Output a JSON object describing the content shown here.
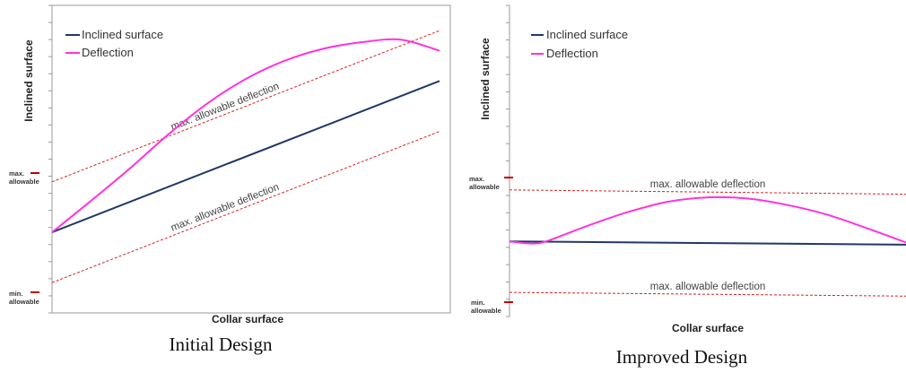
{
  "colors": {
    "inclined": "#1f3868",
    "deflection": "#ff33dd",
    "limit": "#d82222",
    "tick": "#c00000",
    "axis": "#9a9a9a"
  },
  "captions": [
    "Initial Design",
    "Improved Design"
  ],
  "chart_data": [
    {
      "type": "line",
      "title": "",
      "xlabel": "Collar surface",
      "ylabel": "Inclined surface",
      "xlim": [
        0,
        1
      ],
      "ylim": [
        -1.6,
        4.5
      ],
      "grid": false,
      "legend_position": "top-left",
      "tick_labels": [
        {
          "text": "max. allowable",
          "y": 1.0
        },
        {
          "text": "min. allowable",
          "y": -1.0
        }
      ],
      "series": [
        {
          "name": "Inclined surface",
          "color": "#1f3868",
          "x": [
            0,
            1
          ],
          "y": [
            0,
            3.0
          ]
        },
        {
          "name": "Deflection",
          "color": "#ff33dd",
          "x": [
            0,
            0.1,
            0.2,
            0.3,
            0.4,
            0.5,
            0.6,
            0.7,
            0.8,
            0.9,
            1.0
          ],
          "y": [
            0,
            0.62,
            1.26,
            1.94,
            2.55,
            3.04,
            3.4,
            3.64,
            3.77,
            3.82,
            3.6
          ]
        }
      ],
      "limit_lines": [
        {
          "label": "max. allowable deflection",
          "y0": 1.0,
          "y1": 4.0
        },
        {
          "label": "max. allowable deflection",
          "y0": -1.0,
          "y1": 2.0
        }
      ]
    },
    {
      "type": "line",
      "title": "",
      "xlabel": "Collar surface",
      "ylabel": "Inclined surface",
      "xlim": [
        0,
        1
      ],
      "ylim": [
        -1.4,
        4.4
      ],
      "grid": false,
      "legend_position": "top-left",
      "tick_labels": [
        {
          "text": "max. allowable",
          "y": 1.0
        },
        {
          "text": "min. allowable",
          "y": -1.0
        }
      ],
      "series": [
        {
          "name": "Inclined surface",
          "color": "#1f3868",
          "x": [
            0,
            1
          ],
          "y": [
            0,
            -0.06
          ]
        },
        {
          "name": "Deflection",
          "color": "#ff33dd",
          "x": [
            0,
            0.06,
            0.1,
            0.2,
            0.3,
            0.4,
            0.5,
            0.6,
            0.7,
            0.8,
            0.9,
            1.0
          ],
          "y": [
            0,
            -0.04,
            0.02,
            0.3,
            0.55,
            0.74,
            0.82,
            0.8,
            0.68,
            0.5,
            0.25,
            -0.02
          ]
        }
      ],
      "limit_lines": [
        {
          "label": "max. allowable deflection",
          "y0": 0.96,
          "y1": 0.88
        },
        {
          "label": "max. allowable deflection",
          "y0": -0.95,
          "y1": -1.02
        }
      ]
    }
  ]
}
